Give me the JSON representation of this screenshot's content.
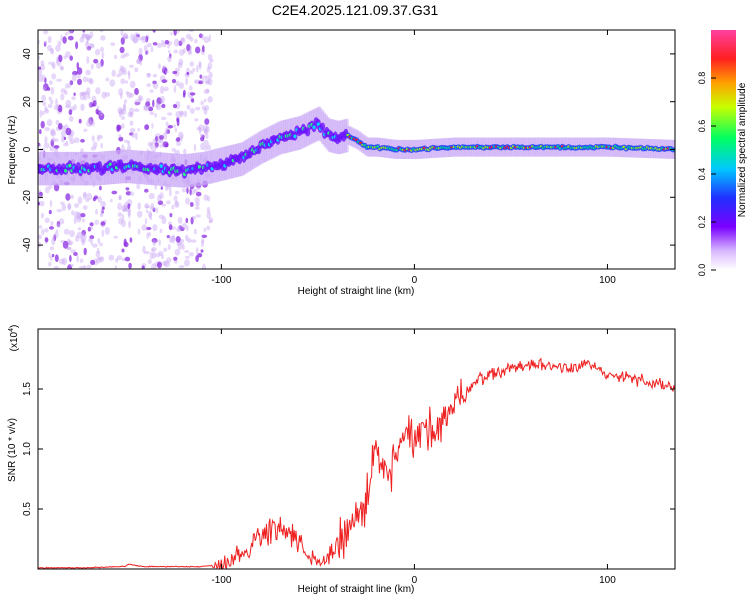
{
  "figure": {
    "title": "C2E4.2025.121.09.37.G31"
  },
  "chart_data": [
    {
      "type": "heatmap",
      "title": "C2E4.2025.121.09.37.G31",
      "xlabel": "Height of straight line (km)",
      "ylabel": "Frequency (Hz)",
      "xlim": [
        -195,
        135
      ],
      "ylim": [
        -50,
        50
      ],
      "xticks": [
        -100,
        0,
        100
      ],
      "yticks": [
        -40,
        -20,
        0,
        20,
        40
      ],
      "colorbar": {
        "label": "Normalized spectral amplitude",
        "range": [
          0,
          1
        ],
        "ticks": [
          0.0,
          0.2,
          0.4,
          0.6,
          0.8
        ]
      },
      "ridge": {
        "description": "frequency of dominant spectral ridge (Hz)",
        "x": [
          -195,
          -180,
          -165,
          -150,
          -135,
          -120,
          -110,
          -100,
          -90,
          -80,
          -70,
          -60,
          -55,
          -50,
          -45,
          -40,
          -35,
          -30,
          -25,
          -20,
          -10,
          0,
          20,
          50,
          100,
          135
        ],
        "y": [
          -8,
          -8,
          -8,
          -7,
          -8,
          -9,
          -8,
          -6,
          -4,
          1,
          5,
          7,
          9,
          11,
          6,
          5,
          6,
          4,
          1,
          1,
          0,
          0,
          1,
          1,
          1,
          0
        ]
      },
      "grid": false
    },
    {
      "type": "line",
      "xlabel": "Height of straight line (km)",
      "ylabel": "SNR (10 * v/v)",
      "yscale_label": "(x10",
      "yscale_exp": "4",
      "xlim": [
        -195,
        135
      ],
      "ylim": [
        0,
        2.0
      ],
      "xticks": [
        -100,
        0,
        100
      ],
      "yticks": [
        0.5,
        1.0,
        1.5
      ],
      "series": [
        {
          "color": "#ee2222",
          "x": [
            -195,
            -170,
            -150,
            -148,
            -140,
            -120,
            -110,
            -100,
            -90,
            -85,
            -80,
            -75,
            -72,
            -68,
            -65,
            -60,
            -55,
            -50,
            -45,
            -40,
            -35,
            -30,
            -25,
            -22,
            -20,
            -15,
            -10,
            -5,
            0,
            5,
            10,
            15,
            20,
            25,
            30,
            35,
            40,
            50,
            60,
            70,
            80,
            90,
            95,
            100,
            110,
            120,
            130,
            135
          ],
          "y": [
            0.01,
            0.01,
            0.02,
            0.04,
            0.02,
            0.02,
            0.02,
            0.04,
            0.12,
            0.18,
            0.28,
            0.34,
            0.4,
            0.3,
            0.32,
            0.2,
            0.08,
            0.05,
            0.1,
            0.2,
            0.3,
            0.42,
            0.55,
            0.8,
            1.0,
            0.75,
            0.9,
            1.1,
            1.05,
            1.15,
            1.2,
            1.25,
            1.35,
            1.42,
            1.55,
            1.6,
            1.62,
            1.68,
            1.7,
            1.7,
            1.68,
            1.72,
            1.65,
            1.6,
            1.62,
            1.55,
            1.52,
            1.5
          ]
        }
      ],
      "grid": false
    }
  ]
}
